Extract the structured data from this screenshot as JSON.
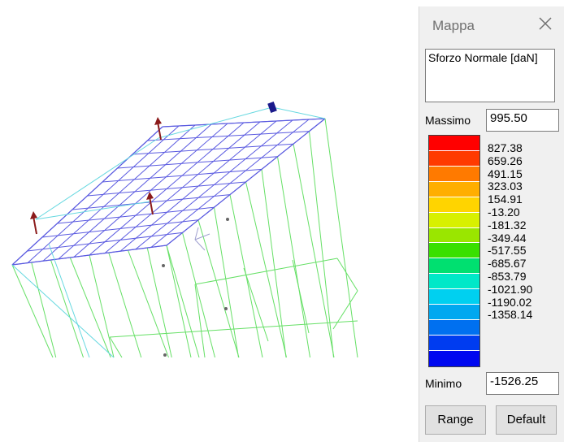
{
  "panel": {
    "title": "Mappa",
    "description": "Sforzo Normale [daN]",
    "max_label": "Massimo",
    "max_value": "995.50",
    "min_label": "Minimo",
    "min_value": "-1526.25",
    "range_button": "Range",
    "default_button": "Default",
    "scale_colors": [
      "#ff0000",
      "#ff3a00",
      "#ff7a00",
      "#ffae00",
      "#ffd400",
      "#d8f000",
      "#9ae600",
      "#39e000",
      "#00e070",
      "#00e8c8",
      "#00d0f0",
      "#00a8f0",
      "#0070f0",
      "#003cf0",
      "#0008f0"
    ],
    "scale_values": [
      "827.38",
      "659.26",
      "491.15",
      "323.03",
      "154.91",
      "-13.20",
      "-181.32",
      "-349.44",
      "-517.55",
      "-685.67",
      "-853.79",
      "-1021.90",
      "-1190.02",
      "-1358.14"
    ]
  },
  "viewport": {
    "colors": {
      "mesh": "#5a5ae0",
      "stress": "#66e066",
      "bars": "#66d8e0",
      "arrow": "#8b1a1a",
      "arrow_blue": "#1a1a8b"
    }
  }
}
